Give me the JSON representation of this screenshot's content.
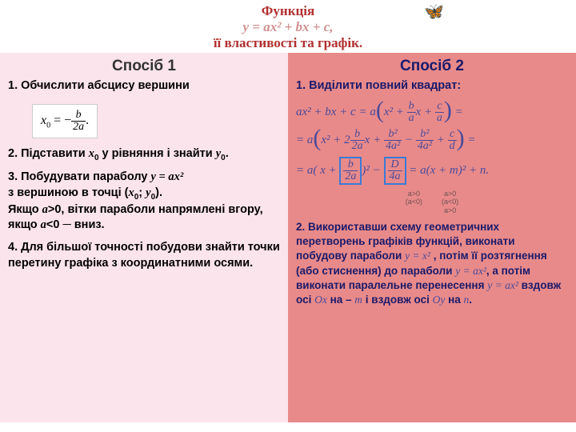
{
  "header": {
    "line1": "Функція",
    "line2": "y = ax² + bx + c,",
    "line3": "її властивості та графік.",
    "butterfly": "🦋"
  },
  "left": {
    "title": "Спосіб 1",
    "step1": "1. Обчислити абсцису вершини",
    "formula_lhs": "x",
    "formula_sub": "0",
    "formula_eq": " = −",
    "formula_num": "b",
    "formula_den": "2a",
    "formula_dot": ".",
    "step2_a": "2. Підставити ",
    "step2_x0": "x",
    "step2_b": " у рівняння і знайти ",
    "step2_y0": "y",
    "step2_c": ".",
    "step3_a": "3. Побудувати параболу ",
    "step3_eq": "y = ax²",
    "step3_b": " з вершиною в точці (",
    "step3_x0": "x",
    "step3_semi": "; ",
    "step3_y0": "y",
    "step3_close": ").",
    "step3_cond1a": " Якщо ",
    "step3_a_gt": "a",
    "step3_cond1b": ">0, вітки параболи напрямлені вгору, якщо ",
    "step3_a_lt": "a",
    "step3_cond1c": "<0 ─ вниз.",
    "step4": "4. Для більшої точності побудови знайти точки перетину графіка з координатними осями."
  },
  "right": {
    "title": "Спосіб 2",
    "step1": "1. Виділити повний квадрат:",
    "eq1_a": "ax² + bx + c = a",
    "eq1_b": "x² + ",
    "eq1_frac1_num": "b",
    "eq1_frac1_den": "a",
    "eq1_c": "x + ",
    "eq1_frac2_num": "c",
    "eq1_frac2_den": "a",
    "eq1_d": " =",
    "eq2_a": "= a",
    "eq2_b": "x² + 2",
    "eq2_f1_num": "b",
    "eq2_f1_den": "2a",
    "eq2_c": "x + ",
    "eq2_f2_num": "b²",
    "eq2_f2_den": "4a²",
    "eq2_d": " − ",
    "eq2_f3_num": "b²",
    "eq2_f3_den": "4a²",
    "eq2_e": " + ",
    "eq2_f4_num": "c",
    "eq2_f4_den": "d",
    "eq2_f": " =",
    "eq3_a": "= a( x + ",
    "eq3_box1_num": "b",
    "eq3_box1_den": "2a",
    "eq3_b": ")² − ",
    "eq3_box2_num": "D",
    "eq3_box2_den": "4a",
    "eq3_c": " = a(x + m)² + n.",
    "cond_left": "a>0\n(a<0)",
    "cond_right": "a>0\n(a<0)\na>0",
    "step2_a": "2. Використавши схему геометричних перетворень графіків функцій, виконати побудову параболи  ",
    "step2_y1": "y = x²",
    "step2_b": " , потім її розтягнення (або стиснення) до параболи ",
    "step2_y2": "y = ax²",
    "step2_c": ", а потім виконати паралельне перенесення   ",
    "step2_y3": "y = ax²",
    "step2_d": "  вздовж осі ",
    "step2_ox": "Ox",
    "step2_e": " на – ",
    "step2_m": "m",
    "step2_f": " і вздовж осі ",
    "step2_oy": "Oy",
    "step2_g": " на ",
    "step2_n": "n",
    "step2_h": "."
  },
  "colors": {
    "left_bg": "#fce4ec",
    "right_bg": "#e88a8a",
    "header_red": "#b23030",
    "header_pink": "#d09090",
    "math_color": "#4a4a9a",
    "box_border": "#3a7ad8"
  }
}
